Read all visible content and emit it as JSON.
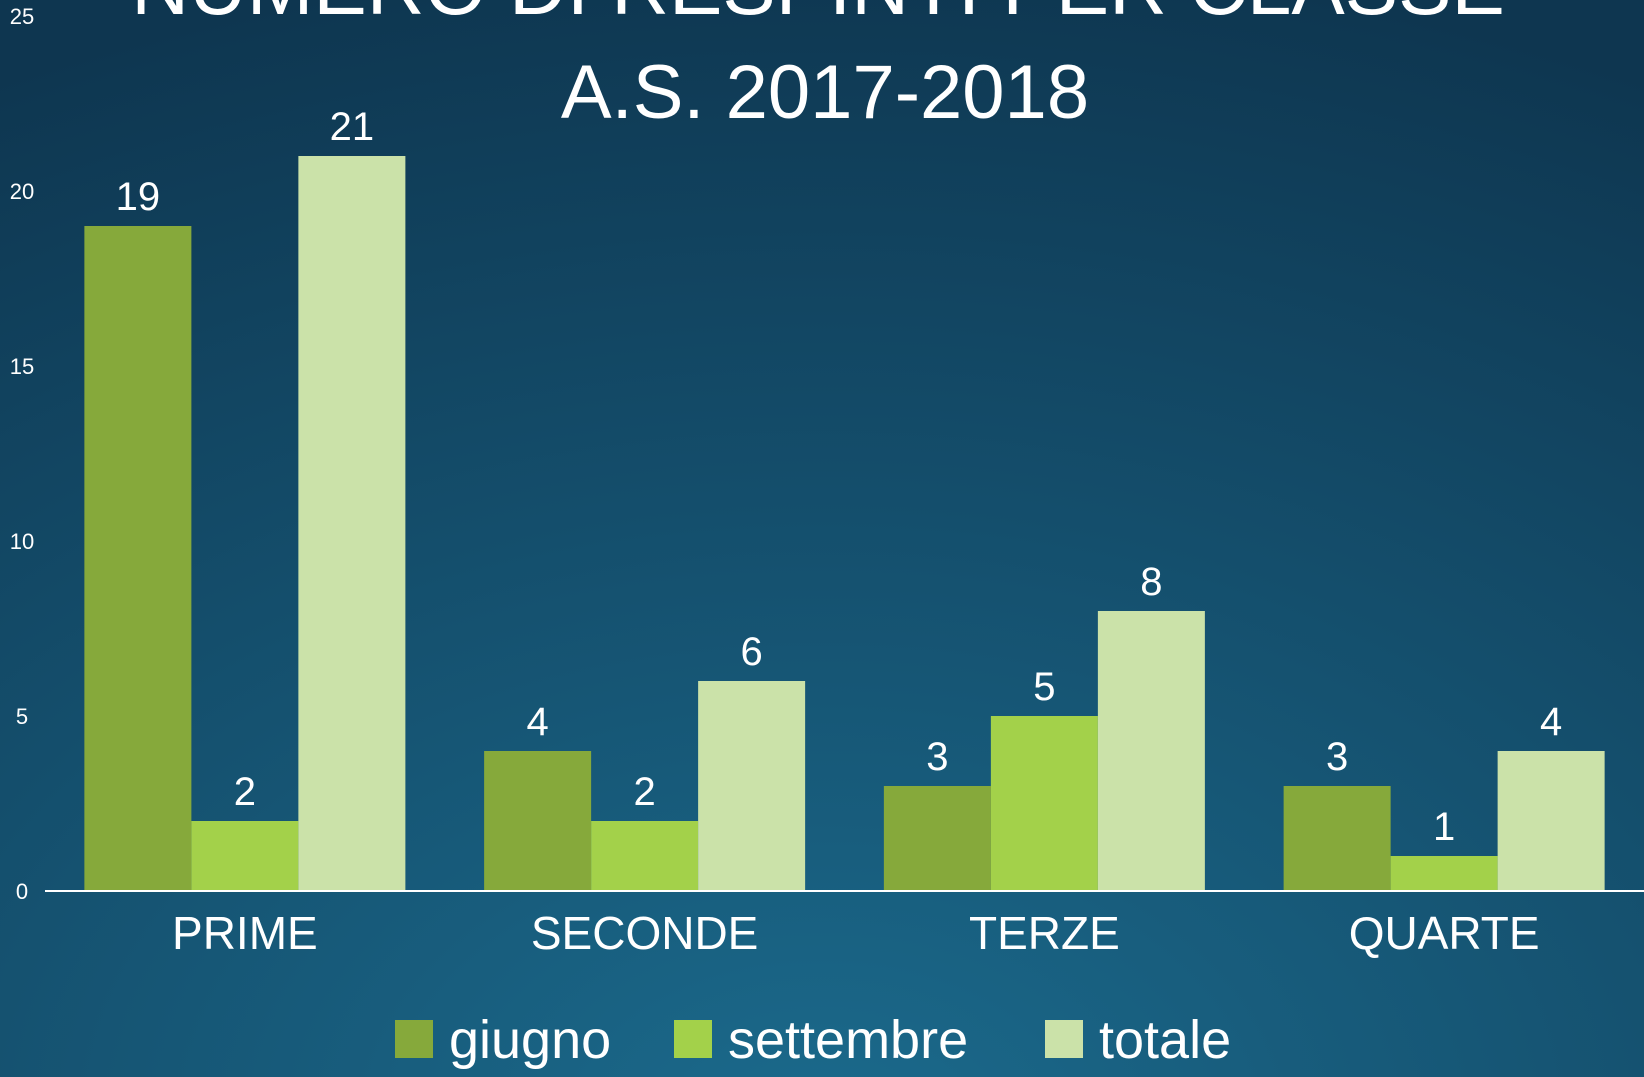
{
  "chart_data": {
    "type": "bar",
    "title": "NUMERO DI RESPINTI PER CLASSE",
    "subtitle": "A.S. 2017-2018",
    "categories": [
      "PRIME",
      "SECONDE",
      "TERZE",
      "QUARTE"
    ],
    "series": [
      {
        "name": "giugno",
        "color": "#86a93b",
        "values": [
          19,
          4,
          3,
          3
        ]
      },
      {
        "name": "settembre",
        "color": "#a3d14a",
        "values": [
          2,
          2,
          5,
          1
        ]
      },
      {
        "name": "totale",
        "color": "#cbe2a9",
        "values": [
          21,
          6,
          8,
          4
        ]
      }
    ],
    "ylim": [
      0,
      25
    ],
    "yticks": [
      0,
      5,
      10,
      15,
      20,
      25
    ],
    "grid": false,
    "legend": "bottom"
  }
}
